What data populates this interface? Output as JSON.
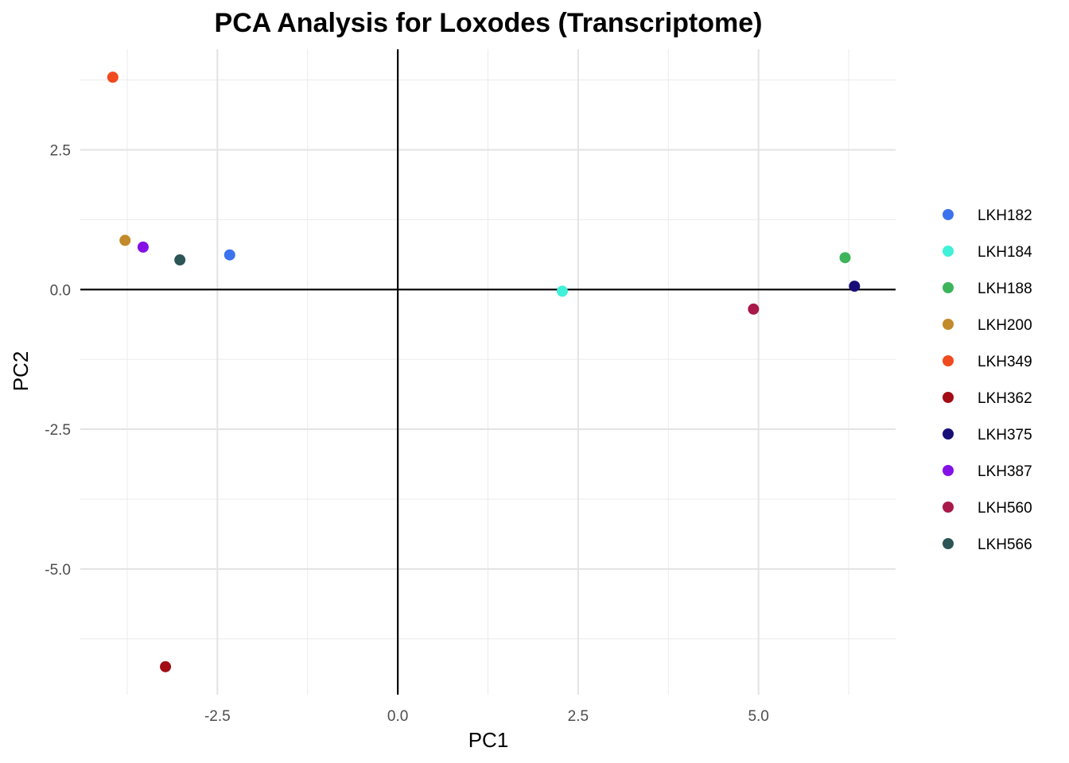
{
  "chart_data": {
    "type": "scatter",
    "title": "PCA Analysis for Loxodes (Transcriptome)",
    "xlabel": "PC1",
    "ylabel": "PC2",
    "xlim": [
      -4.4,
      6.9
    ],
    "ylim": [
      -7.25,
      4.3
    ],
    "x_ticks": [
      {
        "value": -2.5,
        "label": "-2.5"
      },
      {
        "value": 0.0,
        "label": "0.0"
      },
      {
        "value": 2.5,
        "label": "2.5"
      },
      {
        "value": 5.0,
        "label": "5.0"
      }
    ],
    "y_ticks": [
      {
        "value": 2.5,
        "label": "2.5"
      },
      {
        "value": 0.0,
        "label": "0.0"
      },
      {
        "value": -2.5,
        "label": "-2.5"
      },
      {
        "value": -5.0,
        "label": "-5.0"
      }
    ],
    "minor_x": [
      -3.75,
      -1.25,
      1.25,
      3.75,
      6.25
    ],
    "minor_y": [
      3.75,
      1.25,
      -1.25,
      -3.75,
      -6.25
    ],
    "grid": true,
    "reference_lines": {
      "x": 0,
      "y": 0
    },
    "legend_position": "right",
    "series": [
      {
        "name": "LKH182",
        "color": "#3B73EE",
        "x": -2.33,
        "y": 0.62
      },
      {
        "name": "LKH184",
        "color": "#40F0D8",
        "x": 2.28,
        "y": -0.03
      },
      {
        "name": "LKH188",
        "color": "#3CB45A",
        "x": 6.2,
        "y": 0.57
      },
      {
        "name": "LKH200",
        "color": "#C28A28",
        "x": -3.78,
        "y": 0.88
      },
      {
        "name": "LKH349",
        "color": "#F04A1E",
        "x": -3.95,
        "y": 3.8
      },
      {
        "name": "LKH362",
        "color": "#A30C14",
        "x": -3.22,
        "y": -6.75
      },
      {
        "name": "LKH375",
        "color": "#180E78",
        "x": 6.33,
        "y": 0.06
      },
      {
        "name": "LKH387",
        "color": "#8410E6",
        "x": -3.53,
        "y": 0.76
      },
      {
        "name": "LKH560",
        "color": "#A81848",
        "x": 4.93,
        "y": -0.35
      },
      {
        "name": "LKH566",
        "color": "#2C5555",
        "x": -3.02,
        "y": 0.53
      }
    ]
  }
}
